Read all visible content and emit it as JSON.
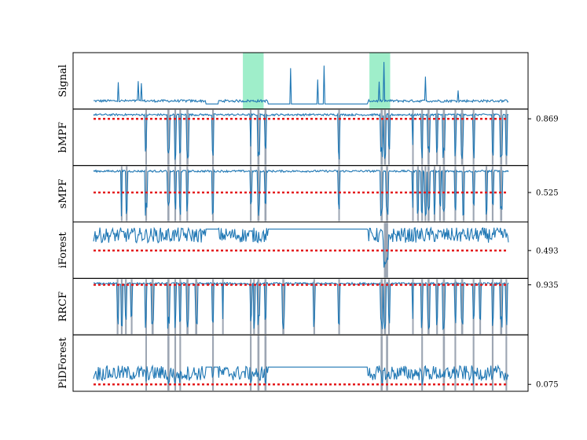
{
  "chart_data": {
    "type": "line",
    "title": "",
    "x_range": [
      0,
      1000
    ],
    "colors": {
      "signal": "#1f77b4",
      "threshold": "#e41a1c",
      "anomaly_shading": "#7fe8b8",
      "detection_band": "#8c96a6",
      "axes": "#000000"
    },
    "anomaly_regions": [
      [
        360,
        410
      ],
      [
        665,
        715
      ]
    ],
    "panels": [
      {
        "name": "Signal",
        "ylabel": "Signal",
        "threshold": null,
        "threshold_label": "",
        "ylim": [
          0,
          1
        ],
        "baseline": 0.1,
        "detections": []
      },
      {
        "name": "bMPF",
        "ylabel": "bMPF",
        "threshold": 0.869,
        "threshold_label": "0.869",
        "ylim": [
          0,
          1
        ],
        "baseline": 0.95,
        "detections": [
          [
            125,
            128
          ],
          [
            178,
            183
          ],
          [
            195,
            199
          ],
          [
            207,
            211
          ],
          [
            224,
            229
          ],
          [
            286,
            290
          ],
          [
            377,
            380
          ],
          [
            395,
            400
          ],
          [
            412,
            417
          ],
          [
            590,
            594
          ],
          [
            692,
            697
          ],
          [
            700,
            705
          ],
          [
            710,
            714
          ],
          [
            768,
            771
          ],
          [
            790,
            794
          ],
          [
            805,
            810
          ],
          [
            826,
            830
          ],
          [
            842,
            847
          ],
          [
            870,
            874
          ],
          [
            886,
            891
          ],
          [
            914,
            918
          ],
          [
            960,
            964
          ],
          [
            980,
            985
          ],
          [
            993,
            997
          ]
        ]
      },
      {
        "name": "sMPF",
        "ylabel": "sMPF",
        "threshold": 0.525,
        "threshold_label": "0.525",
        "ylim": [
          0,
          1
        ],
        "baseline": 0.95,
        "detections": [
          [
            66,
            69
          ],
          [
            78,
            82
          ],
          [
            125,
            129
          ],
          [
            178,
            183
          ],
          [
            195,
            199
          ],
          [
            207,
            211
          ],
          [
            224,
            228
          ],
          [
            286,
            290
          ],
          [
            377,
            381
          ],
          [
            395,
            400
          ],
          [
            412,
            417
          ],
          [
            590,
            593
          ],
          [
            692,
            697
          ],
          [
            705,
            710
          ],
          [
            768,
            771
          ],
          [
            780,
            784
          ],
          [
            790,
            794
          ],
          [
            798,
            802
          ],
          [
            805,
            810
          ],
          [
            820,
            824
          ],
          [
            833,
            837
          ],
          [
            842,
            847
          ],
          [
            870,
            874
          ],
          [
            890,
            894
          ],
          [
            914,
            918
          ],
          [
            945,
            949
          ],
          [
            960,
            964
          ],
          [
            980,
            985
          ]
        ]
      },
      {
        "name": "iForest",
        "ylabel": "iForest",
        "threshold": 0.493,
        "threshold_label": "0.493",
        "ylim": [
          0,
          1
        ],
        "baseline": 0.8,
        "detections": [
          [
            700,
            710
          ]
        ]
      },
      {
        "name": "RRCF",
        "ylabel": "RRCF",
        "threshold": 0.935,
        "threshold_label": "0.935",
        "ylim": [
          0,
          1
        ],
        "baseline": 0.96,
        "detections": [
          [
            56,
            60
          ],
          [
            66,
            70
          ],
          [
            76,
            80
          ],
          [
            90,
            94
          ],
          [
            125,
            128
          ],
          [
            140,
            145
          ],
          [
            178,
            183
          ],
          [
            195,
            199
          ],
          [
            207,
            211
          ],
          [
            224,
            229
          ],
          [
            245,
            250
          ],
          [
            286,
            290
          ],
          [
            310,
            313
          ],
          [
            377,
            381
          ],
          [
            385,
            389
          ],
          [
            395,
            400
          ],
          [
            412,
            417
          ],
          [
            455,
            460
          ],
          [
            530,
            534
          ],
          [
            590,
            594
          ],
          [
            692,
            697
          ],
          [
            700,
            705
          ],
          [
            710,
            714
          ],
          [
            768,
            771
          ],
          [
            790,
            794
          ],
          [
            805,
            810
          ],
          [
            826,
            830
          ],
          [
            842,
            847
          ],
          [
            870,
            874
          ],
          [
            886,
            891
          ],
          [
            914,
            918
          ],
          [
            930,
            934
          ],
          [
            960,
            964
          ],
          [
            980,
            985
          ],
          [
            993,
            997
          ]
        ]
      },
      {
        "name": "PiDForest",
        "ylabel": "PiDForest",
        "threshold": 0.075,
        "threshold_label": "0.075",
        "ylim": [
          0,
          1
        ],
        "baseline": 0.3,
        "detections": [
          [
            125,
            128
          ],
          [
            178,
            183
          ],
          [
            195,
            199
          ],
          [
            207,
            211
          ],
          [
            286,
            290
          ],
          [
            377,
            381
          ],
          [
            395,
            400
          ],
          [
            412,
            417
          ],
          [
            692,
            697
          ],
          [
            705,
            710
          ],
          [
            790,
            794
          ],
          [
            842,
            847
          ],
          [
            870,
            874
          ],
          [
            914,
            918
          ],
          [
            960,
            964
          ],
          [
            993,
            997
          ]
        ]
      }
    ]
  }
}
